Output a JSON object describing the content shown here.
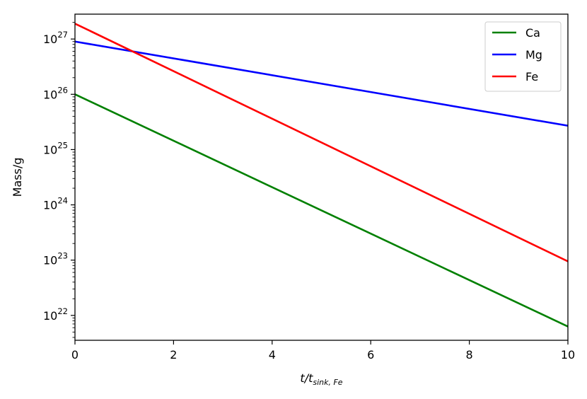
{
  "chart_data": {
    "type": "line",
    "title": "",
    "xlabel": {
      "main": "t/t",
      "sub": "sink, Fe"
    },
    "ylabel": "Mass/g",
    "xlim": [
      0,
      10
    ],
    "ylim_log10": [
      21.55,
      27.45
    ],
    "yscale": "log",
    "x_ticks": [
      "0",
      "2",
      "4",
      "6",
      "8",
      "10"
    ],
    "y_ticks": [
      {
        "base": "10",
        "exp": "22"
      },
      {
        "base": "10",
        "exp": "23"
      },
      {
        "base": "10",
        "exp": "24"
      },
      {
        "base": "10",
        "exp": "25"
      },
      {
        "base": "10",
        "exp": "26"
      },
      {
        "base": "10",
        "exp": "27"
      }
    ],
    "legend_position": "top-right",
    "grid": false,
    "series": [
      {
        "name": "Ca",
        "color": "#008000",
        "x": [
          0,
          10
        ],
        "y": [
          1e+26,
          6.3e+21
        ]
      },
      {
        "name": "Mg",
        "color": "#0000ff",
        "x": [
          0,
          10
        ],
        "y": [
          9e+26,
          2.7e+25
        ]
      },
      {
        "name": "Fe",
        "color": "#ff0000",
        "x": [
          0,
          10
        ],
        "y": [
          1.9e+27,
          9.5e+22
        ]
      }
    ]
  }
}
